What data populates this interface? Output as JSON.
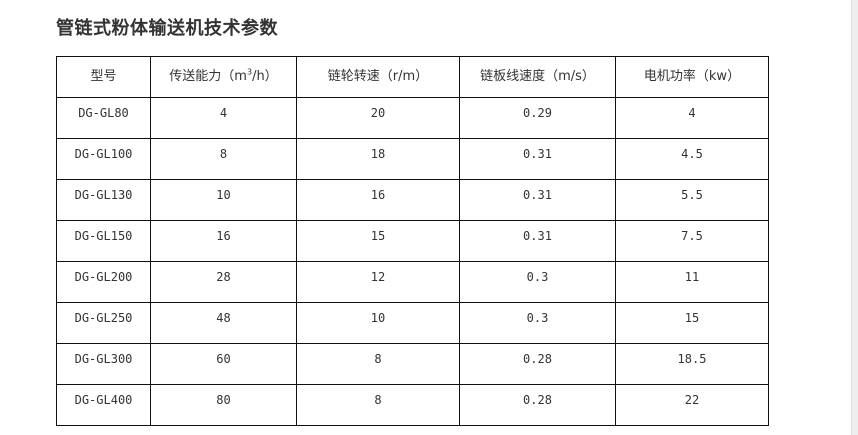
{
  "title": "管链式粉体输送机技术参数",
  "headers": [
    "型号",
    "传送能力（m",
    "链轮转速（r/m）",
    "链板线速度（m/s）",
    "电机功率（kw）"
  ],
  "header_capacity_sup": "3",
  "header_capacity_suffix": "/h）",
  "rows": [
    [
      "DG-GL80",
      "4",
      "20",
      "0.29",
      "4"
    ],
    [
      "DG-GL100",
      "8",
      "18",
      "0.31",
      "4.5"
    ],
    [
      "DG-GL130",
      "10",
      "16",
      "0.31",
      "5.5"
    ],
    [
      "DG-GL150",
      "16",
      "15",
      "0.31",
      "7.5"
    ],
    [
      "DG-GL200",
      "28",
      "12",
      "0.3",
      "11"
    ],
    [
      "DG-GL250",
      "48",
      "10",
      "0.3",
      "15"
    ],
    [
      "DG-GL300",
      "60",
      "8",
      "0.28",
      "18.5"
    ],
    [
      "DG-GL400",
      "80",
      "8",
      "0.28",
      "22"
    ]
  ]
}
